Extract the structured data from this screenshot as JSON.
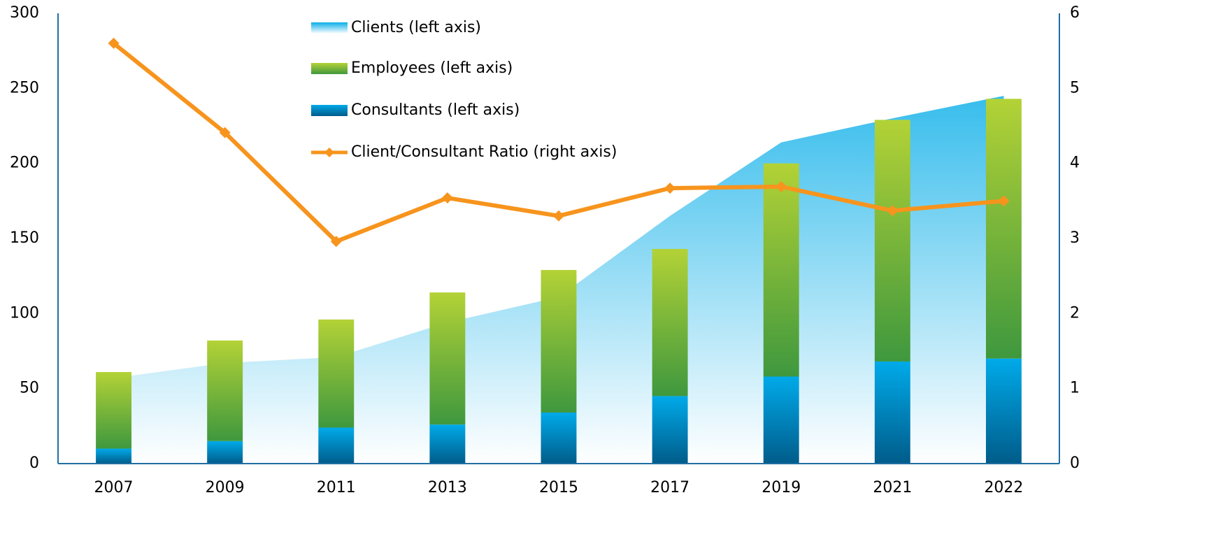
{
  "chart_data": {
    "type": "combo",
    "categories": [
      "2007",
      "2009",
      "2011",
      "2013",
      "2015",
      "2017",
      "2019",
      "2021",
      "2022"
    ],
    "series": [
      {
        "name": "Clients (left axis)",
        "kind": "area",
        "color": "#0aaee8",
        "color2": "#ffffff",
        "values": [
          57,
          67,
          71,
          94,
          111,
          165,
          214,
          230,
          245
        ]
      },
      {
        "name": "Employees (left axis)",
        "kind": "stacked-bar",
        "color": "#b3d236",
        "color2": "#3f983e",
        "values": [
          51,
          67,
          72,
          88,
          95,
          98,
          142,
          161,
          173
        ]
      },
      {
        "name": "Consultants (left axis)",
        "kind": "stacked-bar",
        "color": "#00aae9",
        "color2": "#005c8a",
        "values": [
          10,
          15,
          24,
          26,
          34,
          45,
          58,
          68,
          70
        ]
      },
      {
        "name": "Client/Consultant Ratio (right axis)",
        "kind": "line",
        "axis": "y2",
        "color": "#f7941d",
        "values": [
          5.6,
          4.41,
          2.96,
          3.54,
          3.3,
          3.67,
          3.69,
          3.37,
          3.5
        ]
      }
    ],
    "ylim": [
      0,
      300
    ],
    "yticks": [
      0,
      50,
      100,
      150,
      200,
      250,
      300
    ],
    "y2lim": [
      0,
      6
    ],
    "y2ticks": [
      0,
      1,
      2,
      3,
      4,
      5,
      6
    ],
    "grid": false
  }
}
